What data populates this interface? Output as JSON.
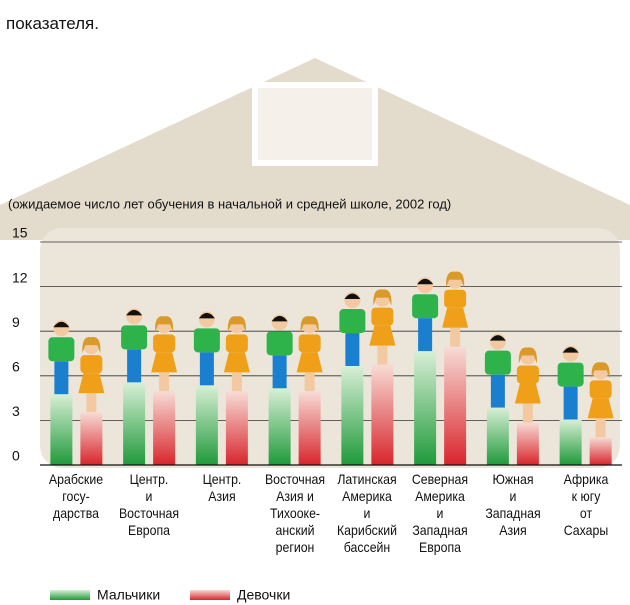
{
  "intro": "показателя.",
  "chart_data": {
    "type": "bar",
    "subtitle": "(ожидаемое число лет обучения в начальной и средней школе, 2002 год)",
    "categories": [
      "Арабские\nгосу-\nдарства",
      "Центр.\nи\nВосточная\nЕвропа",
      "Центр.\nАзия",
      "Восточная\nАзия и\nТихооке-\nанский\nрегион",
      "Латинская\nАмерика\nи\nКарибский\nбассейн",
      "Северная\nАмерика\nи\nЗападная\nЕвропа",
      "Южная\nи\nЗападная\nАзия",
      "Африка\nк югу\nот\nСахары"
    ],
    "series": [
      {
        "name": "Мальчики",
        "color": "#2db34a",
        "values": [
          9.8,
          10.6,
          10.4,
          10.2,
          11.7,
          12.7,
          8.9,
          8.1
        ]
      },
      {
        "name": "Девочки",
        "color": "#f0a018",
        "values": [
          8.6,
          10.0,
          10.0,
          10.0,
          11.8,
          13.0,
          7.9,
          6.9
        ]
      }
    ],
    "ylim": [
      0,
      15
    ],
    "yticks": [
      0,
      3,
      6,
      9,
      12,
      15
    ],
    "grid": true
  }
}
